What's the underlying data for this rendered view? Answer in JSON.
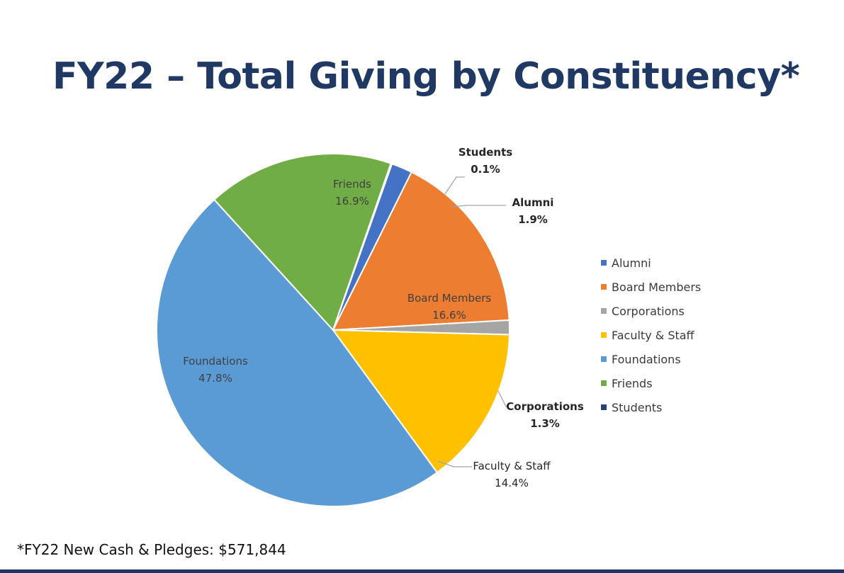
{
  "title": "FY22 – Total Giving by Constituency*",
  "footnote": "*FY22 New Cash & Pledges: $571,844",
  "chart_data": {
    "type": "pie",
    "title": "FY22 – Total Giving by Constituency*",
    "legend_position": "right",
    "start_angle_deg": 19.5,
    "direction": "clockwise",
    "slices": [
      {
        "name": "Alumni",
        "value": 1.9,
        "pct_label": "1.9%",
        "color": "#4472c4",
        "label_style": "outside-bold"
      },
      {
        "name": "Board Members",
        "value": 16.6,
        "pct_label": "16.6%",
        "color": "#ed7d31",
        "label_style": "inside"
      },
      {
        "name": "Corporations",
        "value": 1.3,
        "pct_label": "1.3%",
        "color": "#a5a5a5",
        "label_style": "outside-bold"
      },
      {
        "name": "Faculty & Staff",
        "value": 14.4,
        "pct_label": "14.4%",
        "color": "#ffc000",
        "label_style": "outside"
      },
      {
        "name": "Foundations",
        "value": 47.8,
        "pct_label": "47.8%",
        "color": "#5b9bd5",
        "label_style": "inside"
      },
      {
        "name": "Friends",
        "value": 16.9,
        "pct_label": "16.9%",
        "color": "#70ad47",
        "label_style": "inside"
      },
      {
        "name": "Students",
        "value": 0.1,
        "pct_label": "0.1%",
        "color": "#264478",
        "label_style": "outside-bold"
      }
    ],
    "legend": [
      "Alumni",
      "Board Members",
      "Corporations",
      "Faculty & Staff",
      "Foundations",
      "Friends",
      "Students"
    ]
  }
}
